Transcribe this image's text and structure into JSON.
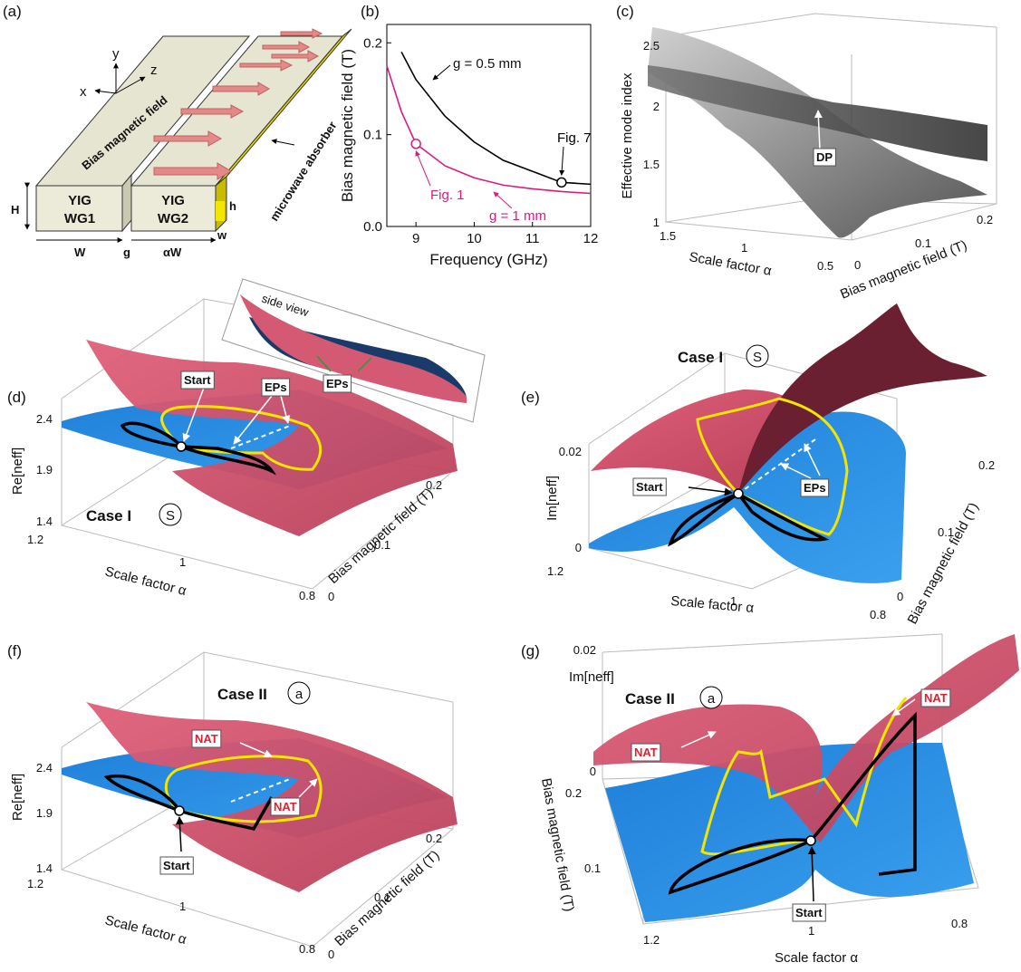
{
  "chart_data": {
    "type": "line",
    "label": "(b)",
    "xlabel": "Frequency (GHz)",
    "ylabel": "Bias magnetic field (T)",
    "x": [
      8.5,
      8.75,
      9,
      9.5,
      10,
      10.5,
      11,
      11.5,
      12
    ],
    "series": [
      {
        "name": "g = 0.5 mm",
        "color": "#000000",
        "values": [
          null,
          0.19,
          0.16,
          0.12,
          0.092,
          0.072,
          0.06,
          0.048,
          0.046
        ]
      },
      {
        "name": "g = 1 mm",
        "color": "#e0197d",
        "values": [
          0.175,
          0.125,
          0.09,
          0.066,
          0.053,
          0.045,
          0.041,
          0.038,
          0.036
        ]
      }
    ],
    "markers": [
      {
        "x": 9,
        "y": 0.09,
        "label": "Fig. 1",
        "color": "#e0197d"
      },
      {
        "x": 11.5,
        "y": 0.048,
        "label": "Fig. 7",
        "color": "#000000"
      }
    ],
    "xlim": [
      8.5,
      12
    ],
    "xticks": [
      9,
      10,
      11,
      12
    ],
    "ylim": [
      0,
      0.22
    ],
    "yticks": [
      {
        "value": 0,
        "label": "0.0"
      },
      0.1,
      0.2
    ]
  },
  "panels": {
    "a": {
      "label": "(a)",
      "axes": [
        "x",
        "y",
        "z"
      ],
      "field": "Bias magnetic field",
      "absorber": "microwave absorber",
      "wg1": [
        "YIG",
        "WG1"
      ],
      "wg2": [
        "YIG",
        "WG2"
      ],
      "dims": [
        "H",
        "h",
        "W",
        "g",
        "αW",
        "w"
      ]
    },
    "c": {
      "label": "(c)",
      "y_label": "Effective mode index",
      "y_ticks": [
        "2.5",
        "2",
        "1.5",
        "1"
      ],
      "x_label": "Scale factor α",
      "x_ticks": [
        "1.5",
        "1",
        "0.5"
      ],
      "z_label": "Bias magnetic field (T)",
      "z_ticks": [
        "0",
        "0.1",
        "0.2"
      ],
      "point": "DP"
    },
    "d": {
      "label": "(d)",
      "y_label": "Re[neff]",
      "y_ticks": [
        "2.4",
        "1.9",
        "1.4"
      ],
      "x_label": "Scale factor α",
      "x_ticks": [
        "1.2",
        "1",
        "0.8"
      ],
      "z_label": "Bias magnetic field (T)",
      "z_ticks": [
        "0",
        "0.1",
        "0.2"
      ],
      "case": "Case I",
      "symbol": "S",
      "start": "Start",
      "points": "EPs",
      "inset_title": "side view",
      "inset_points": "EPs"
    },
    "e": {
      "label": "(e)",
      "y_label": "Im[neff]",
      "y_ticks": [
        "0.02",
        "0"
      ],
      "x_label": "Scale factor α",
      "x_ticks": [
        "1.2",
        "1",
        "0.8"
      ],
      "z_label": "Bias magnetic field (T)",
      "z_ticks": [
        "0",
        "0.1",
        "0.2"
      ],
      "case": "Case I",
      "symbol": "S",
      "start": "Start",
      "points": "EPs"
    },
    "f": {
      "label": "(f)",
      "y_label": "Re[neff]",
      "y_ticks": [
        "2.4",
        "1.9",
        "1.4"
      ],
      "x_label": "Scale factor α",
      "x_ticks": [
        "1.2",
        "1",
        "0.8"
      ],
      "z_label": "Bias magnetic field (T)",
      "z_ticks": [
        "0",
        "0.1",
        "0.2"
      ],
      "case": "Case II",
      "symbol": "a",
      "start": "Start",
      "nat": [
        "NAT",
        "NAT"
      ]
    },
    "g": {
      "label": "(g)",
      "y_label": "Im[neff]",
      "y_ticks": [
        "0.02",
        "0"
      ],
      "x_label": "Scale factor α",
      "x_ticks": [
        "1.2",
        "1",
        "0.8"
      ],
      "z_label": "Bias magnetic field (T)",
      "z_ticks": [
        "0.2",
        "0.1"
      ],
      "case": "Case II",
      "symbol": "a",
      "start": "Start",
      "nat": [
        "NAT",
        "NAT"
      ]
    }
  }
}
